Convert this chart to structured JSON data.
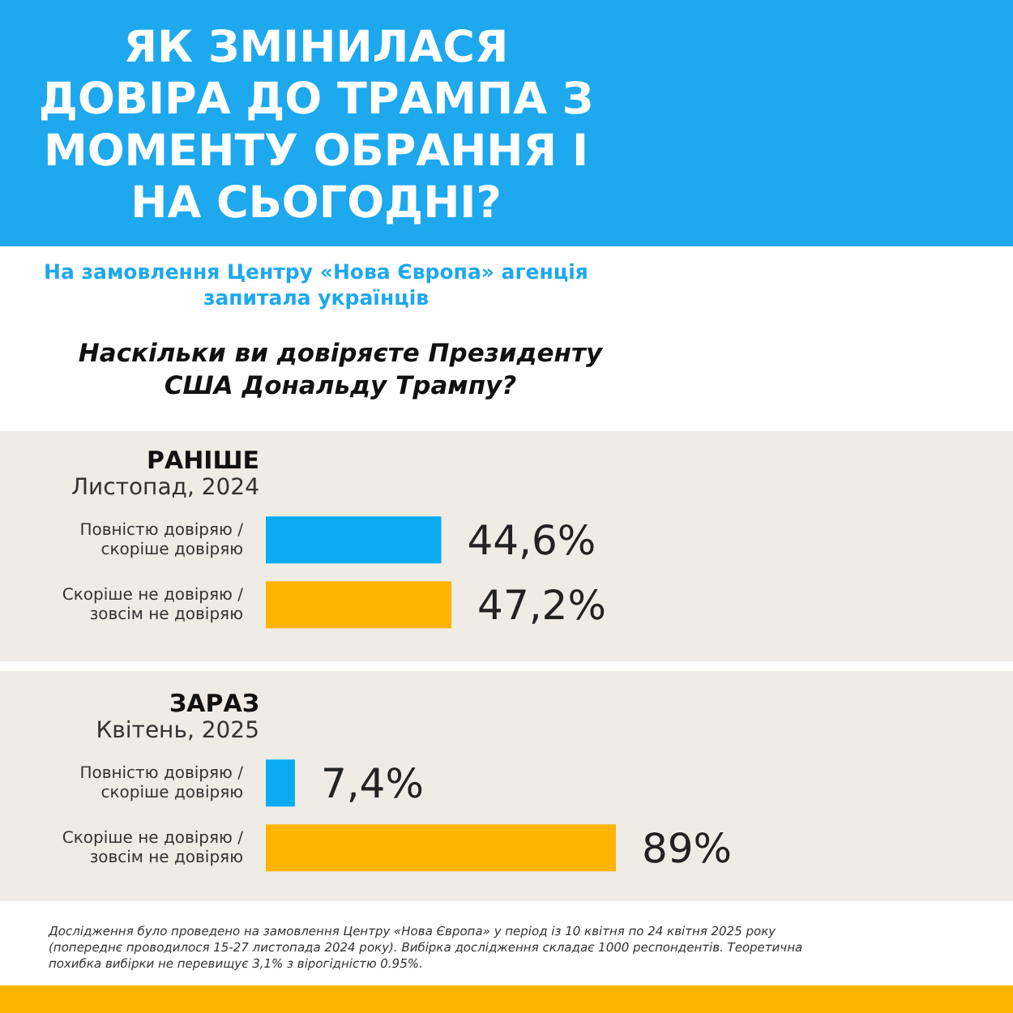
{
  "chart_data": [
    {
      "type": "bar",
      "orientation": "horizontal",
      "title": "РАНІШЕ",
      "subtitle": "Листопад, 2024",
      "annotations": [
        "ЯК ЗМІНИЛАСЯ ДОВІРА ДО ТРАМПА З МОМЕНТУ ОБРАННЯ І НА СЬОГОДНІ?",
        "На замовлення Центру «Нова Європа» агенція запитала українців",
        "Наскільки ви довіряєте Президенту США Дональду Трампу?"
      ],
      "categories": [
        "Повністю довіряю / скоріше довіряю",
        "Скоріше не довіряю / зовсім не довіряю"
      ],
      "values": [
        44.6,
        47.2
      ],
      "colors": [
        "#0aabf2",
        "#ffb400"
      ],
      "value_labels": [
        "44,6%",
        "47,2%"
      ],
      "tick_labels": "y",
      "grid": false
    },
    {
      "type": "bar",
      "orientation": "horizontal",
      "title": "ЗАРАЗ",
      "subtitle": "Квітень, 2025",
      "annotations": [
        "Дослідження було проведено на замовлення Центру «Нова Європа» у період із 10 квітня по 24 квітня 2025 року (попереднє проводилося 15-27 листопада 2024 року). Вибірка дослідження складає 1000 респондентів. Теоретична похибка вибірки не перевищує 3,1% з вірогідністю 0.95%."
      ],
      "categories": [
        "Повністю довіряю / скоріше довіряю",
        "Скоріше не довіряю / зовсім не довіряю"
      ],
      "values": [
        7.4,
        89
      ],
      "colors": [
        "#0aabf2",
        "#ffb400"
      ],
      "value_labels": [
        "7,4%",
        "89%"
      ],
      "tick_labels": "y",
      "grid": false
    }
  ]
}
